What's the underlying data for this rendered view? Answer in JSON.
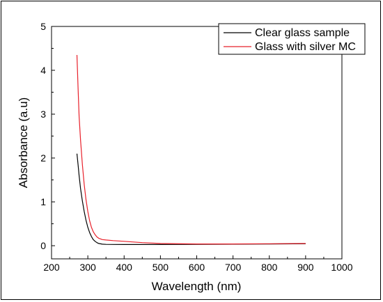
{
  "chart_data": {
    "type": "line",
    "xlabel": "Wavelength (nm)",
    "ylabel": "Absorbance (a.u)",
    "xlim": [
      200,
      1000
    ],
    "ylim": [
      -0.3,
      5
    ],
    "xticks": [
      200,
      300,
      400,
      500,
      600,
      700,
      800,
      900,
      1000
    ],
    "yticks": [
      0,
      1,
      2,
      3,
      4,
      5
    ],
    "grid": false,
    "legend_position": "top-right",
    "series": [
      {
        "name": "Clear glass sample",
        "color": "#000000",
        "x": [
          270,
          273,
          276,
          280,
          285,
          290,
          295,
          300,
          305,
          310,
          315,
          320,
          325,
          330,
          340,
          350,
          370,
          400,
          450,
          500,
          600,
          700,
          800,
          900
        ],
        "y": [
          2.1,
          1.85,
          1.6,
          1.3,
          1.02,
          0.78,
          0.58,
          0.42,
          0.3,
          0.21,
          0.14,
          0.1,
          0.07,
          0.05,
          0.035,
          0.03,
          0.028,
          0.027,
          0.027,
          0.027,
          0.03,
          0.035,
          0.04,
          0.045
        ]
      },
      {
        "name": "Glass with silver MC",
        "color": "#e8202a",
        "x": [
          270,
          273,
          276,
          280,
          285,
          290,
          295,
          300,
          305,
          310,
          315,
          320,
          325,
          330,
          340,
          350,
          370,
          400,
          450,
          500,
          600,
          700,
          800,
          900
        ],
        "y": [
          4.35,
          3.6,
          2.95,
          2.4,
          1.85,
          1.4,
          1.05,
          0.78,
          0.57,
          0.42,
          0.32,
          0.25,
          0.2,
          0.17,
          0.14,
          0.13,
          0.115,
          0.1,
          0.07,
          0.05,
          0.04,
          0.04,
          0.045,
          0.05
        ]
      }
    ]
  }
}
